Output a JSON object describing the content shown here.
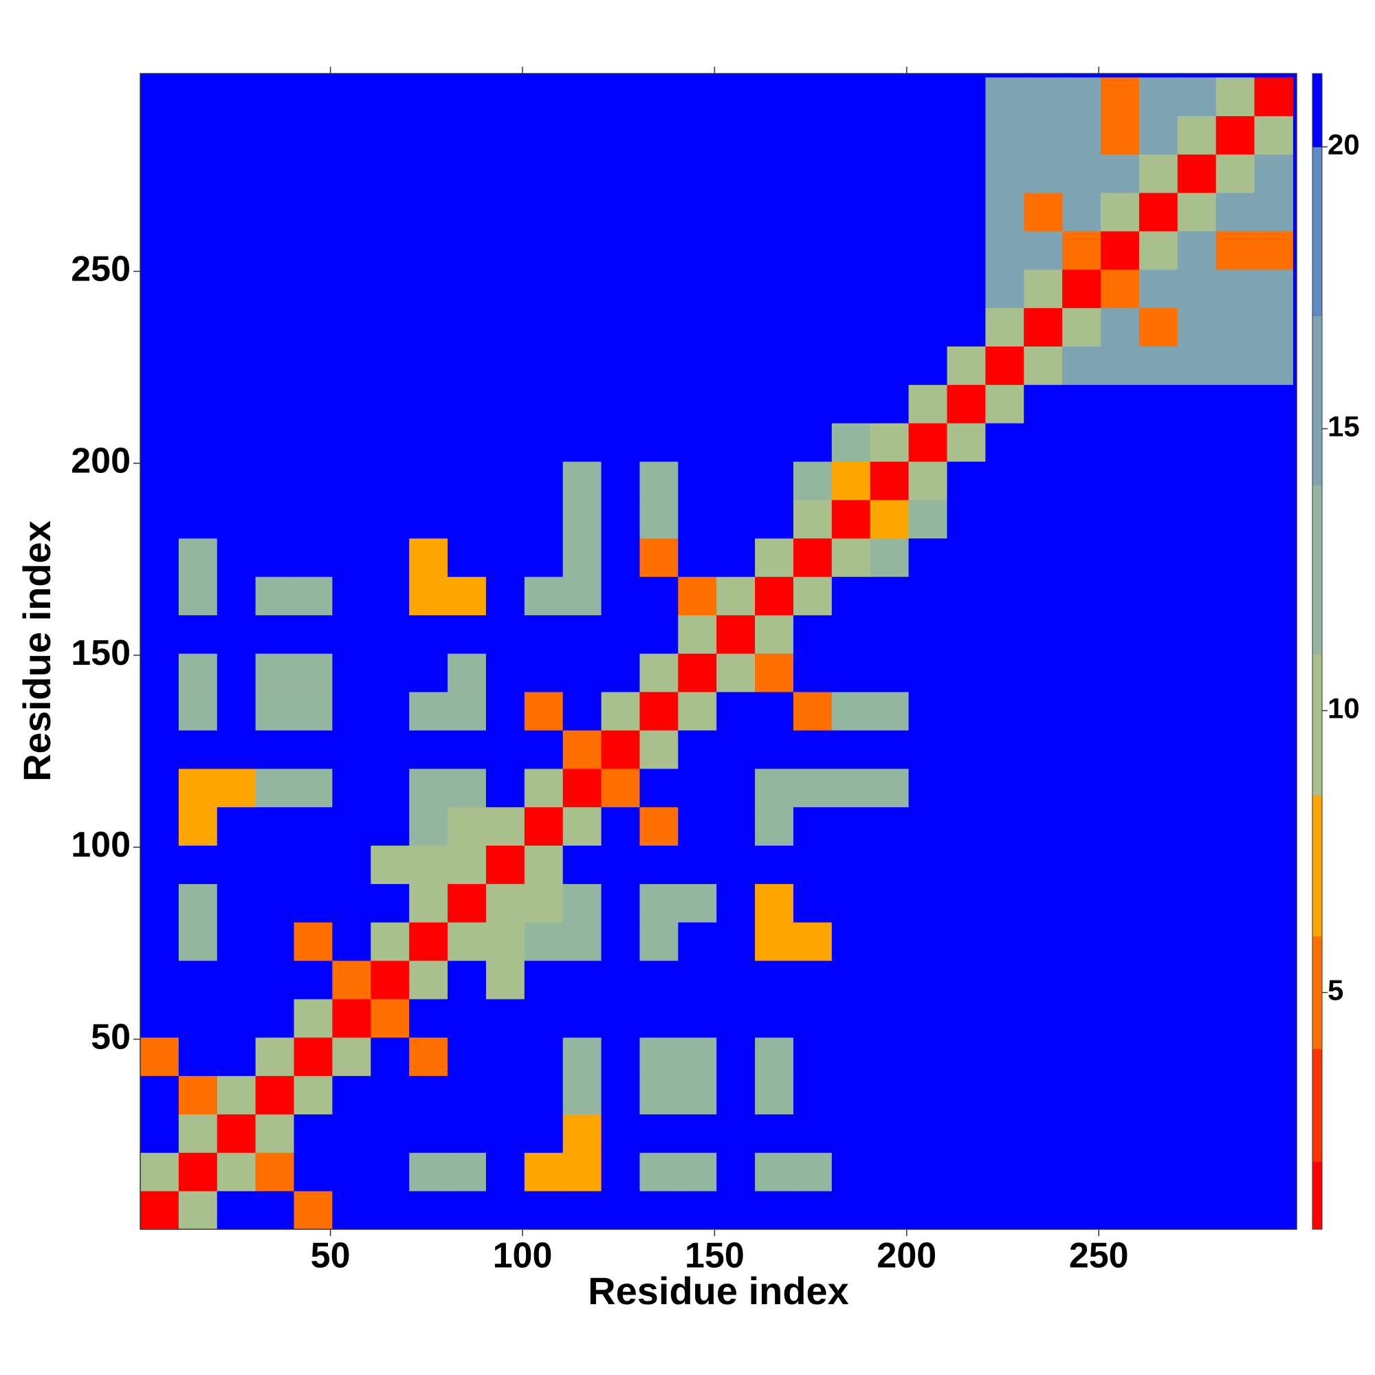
{
  "chart_data": {
    "type": "heatmap",
    "x_label": "Residue index",
    "y_label": "Residue index",
    "xlim": [
      0.5,
      301.5
    ],
    "ylim": [
      0.5,
      301.5
    ],
    "xticks": [
      50,
      100,
      150,
      200,
      250
    ],
    "yticks": [
      50,
      100,
      150,
      200,
      250
    ],
    "xbins": [
      0.5,
      10.5,
      20.5,
      30.5,
      40.5,
      50.5,
      60.5,
      70.5,
      80.5,
      90.5,
      100.5,
      110.5,
      120.5,
      130.5,
      140.5,
      150.5,
      160.5,
      170.5,
      180.5,
      190.5,
      200.5,
      210.5,
      220.5,
      230.5,
      240.5,
      250.5,
      260.5,
      270.5,
      280.5,
      290.5,
      300.5
    ],
    "ybins": [
      0.5,
      10.5,
      20.5,
      30.5,
      40.5,
      50.5,
      60.5,
      70.5,
      80.5,
      90.5,
      100.5,
      110.5,
      120.5,
      130.5,
      140.5,
      150.5,
      160.5,
      170.5,
      180.5,
      190.5,
      200.5,
      210.5,
      220.5,
      230.5,
      240.5,
      250.5,
      260.5,
      270.5,
      280.5,
      290.5,
      300.5
    ],
    "zlim": [
      0.8,
      21.3
    ],
    "zticks": [
      5,
      10,
      15,
      20
    ],
    "color_levels": [
      [
        2,
        "#ff0000"
      ],
      [
        4,
        "#ff3300"
      ],
      [
        6,
        "#ff7000"
      ],
      [
        8.5,
        "#ffa500"
      ],
      [
        11,
        "#a9c08e"
      ],
      [
        14,
        "#94b5a0"
      ],
      [
        17,
        "#7fa4b3"
      ],
      [
        20,
        "#5e8bc4"
      ],
      [
        21.3,
        "#0000ff"
      ]
    ],
    "z": [
      [
        2,
        9,
        22,
        22,
        6,
        22,
        22,
        22,
        22,
        22,
        22,
        22,
        22,
        22,
        22,
        22,
        22,
        22,
        22,
        22,
        22,
        22,
        22,
        22,
        22,
        22,
        22,
        22,
        22,
        22
      ],
      [
        9,
        2,
        9,
        6,
        22,
        22,
        22,
        12,
        12,
        22,
        8,
        8,
        22,
        13,
        12,
        22,
        13,
        13,
        22,
        22,
        22,
        22,
        22,
        22,
        22,
        22,
        22,
        22,
        22,
        22
      ],
      [
        22,
        9,
        2,
        9,
        22,
        22,
        22,
        22,
        22,
        22,
        22,
        8,
        22,
        22,
        22,
        22,
        22,
        22,
        22,
        22,
        22,
        22,
        22,
        22,
        22,
        22,
        22,
        22,
        22,
        22
      ],
      [
        22,
        6,
        9,
        2,
        9,
        22,
        22,
        22,
        22,
        22,
        22,
        12,
        22,
        14,
        14,
        22,
        13,
        22,
        22,
        22,
        22,
        22,
        22,
        22,
        22,
        22,
        22,
        22,
        22,
        22
      ],
      [
        6,
        22,
        22,
        9,
        2,
        9,
        22,
        6,
        22,
        22,
        22,
        12,
        22,
        14,
        14,
        22,
        13,
        22,
        22,
        22,
        22,
        22,
        22,
        22,
        22,
        22,
        22,
        22,
        22,
        22
      ],
      [
        22,
        22,
        22,
        22,
        9,
        2,
        6,
        22,
        22,
        22,
        22,
        22,
        22,
        22,
        22,
        22,
        22,
        22,
        22,
        22,
        22,
        22,
        22,
        22,
        22,
        22,
        22,
        22,
        22,
        22
      ],
      [
        22,
        22,
        22,
        22,
        22,
        6,
        2,
        9,
        22,
        11,
        22,
        22,
        22,
        22,
        22,
        22,
        22,
        22,
        22,
        22,
        22,
        22,
        22,
        22,
        22,
        22,
        22,
        22,
        22,
        22
      ],
      [
        22,
        12,
        22,
        22,
        6,
        22,
        9,
        2,
        9,
        10,
        12,
        13,
        22,
        14,
        22,
        22,
        8,
        8,
        22,
        22,
        22,
        22,
        22,
        22,
        22,
        22,
        22,
        22,
        22,
        22
      ],
      [
        22,
        12,
        22,
        22,
        22,
        22,
        22,
        9,
        2,
        9,
        10,
        12,
        22,
        14,
        14,
        22,
        8,
        22,
        22,
        22,
        22,
        22,
        22,
        22,
        22,
        22,
        22,
        22,
        22,
        22
      ],
      [
        22,
        22,
        22,
        22,
        22,
        22,
        11,
        10,
        9,
        2,
        9,
        22,
        22,
        22,
        22,
        22,
        22,
        22,
        22,
        22,
        22,
        22,
        22,
        22,
        22,
        22,
        22,
        22,
        22,
        22
      ],
      [
        22,
        8,
        22,
        22,
        22,
        22,
        22,
        12,
        10,
        9,
        2,
        9,
        22,
        6,
        22,
        22,
        14,
        22,
        22,
        22,
        22,
        22,
        22,
        22,
        22,
        22,
        22,
        22,
        22,
        22
      ],
      [
        22,
        8,
        8,
        12,
        12,
        22,
        22,
        13,
        12,
        22,
        9,
        2,
        6,
        22,
        22,
        22,
        13,
        13,
        13,
        13,
        22,
        22,
        22,
        22,
        22,
        22,
        22,
        22,
        22,
        22
      ],
      [
        22,
        22,
        22,
        22,
        22,
        22,
        22,
        22,
        22,
        22,
        22,
        6,
        2,
        9,
        22,
        22,
        22,
        22,
        22,
        22,
        22,
        22,
        22,
        22,
        22,
        22,
        22,
        22,
        22,
        22
      ],
      [
        22,
        13,
        22,
        14,
        14,
        22,
        22,
        14,
        14,
        22,
        6,
        22,
        9,
        2,
        9,
        22,
        22,
        6,
        14,
        14,
        22,
        22,
        22,
        22,
        22,
        22,
        22,
        22,
        22,
        22
      ],
      [
        22,
        12,
        22,
        14,
        14,
        22,
        22,
        22,
        14,
        22,
        22,
        22,
        22,
        9,
        2,
        9,
        6,
        22,
        22,
        22,
        22,
        22,
        22,
        22,
        22,
        22,
        22,
        22,
        22,
        22
      ],
      [
        22,
        22,
        22,
        22,
        22,
        22,
        22,
        22,
        22,
        22,
        22,
        22,
        22,
        22,
        9,
        2,
        9,
        22,
        22,
        22,
        22,
        22,
        22,
        22,
        22,
        22,
        22,
        22,
        22,
        22
      ],
      [
        22,
        13,
        22,
        13,
        13,
        22,
        22,
        8,
        8,
        22,
        14,
        13,
        22,
        22,
        6,
        9,
        2,
        9,
        22,
        22,
        22,
        22,
        22,
        22,
        22,
        22,
        22,
        22,
        22,
        22
      ],
      [
        22,
        13,
        22,
        22,
        22,
        22,
        22,
        8,
        22,
        22,
        22,
        13,
        22,
        6,
        22,
        22,
        9,
        2,
        9,
        13,
        22,
        22,
        22,
        22,
        22,
        22,
        22,
        22,
        22,
        22
      ],
      [
        22,
        22,
        22,
        22,
        22,
        22,
        22,
        22,
        22,
        22,
        22,
        13,
        22,
        14,
        22,
        22,
        22,
        9,
        2,
        7,
        13,
        22,
        22,
        22,
        22,
        22,
        22,
        22,
        22,
        22
      ],
      [
        22,
        22,
        22,
        22,
        22,
        22,
        22,
        22,
        22,
        22,
        22,
        13,
        22,
        14,
        22,
        22,
        22,
        13,
        7,
        2,
        9,
        22,
        22,
        22,
        22,
        22,
        22,
        22,
        22,
        22
      ],
      [
        22,
        22,
        22,
        22,
        22,
        22,
        22,
        22,
        22,
        22,
        22,
        22,
        22,
        22,
        22,
        22,
        22,
        22,
        13,
        9,
        2,
        9,
        22,
        22,
        22,
        22,
        22,
        22,
        22,
        22
      ],
      [
        22,
        22,
        22,
        22,
        22,
        22,
        22,
        22,
        22,
        22,
        22,
        22,
        22,
        22,
        22,
        22,
        22,
        22,
        22,
        22,
        9,
        2,
        9,
        22,
        22,
        22,
        22,
        22,
        22,
        22
      ],
      [
        22,
        22,
        22,
        22,
        22,
        22,
        22,
        22,
        22,
        22,
        22,
        22,
        22,
        22,
        22,
        22,
        22,
        22,
        22,
        22,
        22,
        9,
        2,
        9,
        15,
        15,
        15,
        15,
        15,
        15
      ],
      [
        22,
        22,
        22,
        22,
        22,
        22,
        22,
        22,
        22,
        22,
        22,
        22,
        22,
        22,
        22,
        22,
        22,
        22,
        22,
        22,
        22,
        22,
        9,
        2,
        9,
        15,
        6,
        15,
        15,
        15
      ],
      [
        22,
        22,
        22,
        22,
        22,
        22,
        22,
        22,
        22,
        22,
        22,
        22,
        22,
        22,
        22,
        22,
        22,
        22,
        22,
        22,
        22,
        22,
        15,
        9,
        2,
        6,
        15,
        15,
        15,
        15
      ],
      [
        22,
        22,
        22,
        22,
        22,
        22,
        22,
        22,
        22,
        22,
        22,
        22,
        22,
        22,
        22,
        22,
        22,
        22,
        22,
        22,
        22,
        22,
        15,
        15,
        6,
        2,
        9,
        15,
        6,
        6
      ],
      [
        22,
        22,
        22,
        22,
        22,
        22,
        22,
        22,
        22,
        22,
        22,
        22,
        22,
        22,
        22,
        22,
        22,
        22,
        22,
        22,
        22,
        22,
        15,
        6,
        15,
        9,
        2,
        9,
        15,
        15
      ],
      [
        22,
        22,
        22,
        22,
        22,
        22,
        22,
        22,
        22,
        22,
        22,
        22,
        22,
        22,
        22,
        22,
        22,
        22,
        22,
        22,
        22,
        22,
        15,
        15,
        15,
        15,
        9,
        2,
        9,
        15
      ],
      [
        22,
        22,
        22,
        22,
        22,
        22,
        22,
        22,
        22,
        22,
        22,
        22,
        22,
        22,
        22,
        22,
        22,
        22,
        22,
        22,
        22,
        22,
        15,
        15,
        15,
        6,
        15,
        9,
        2,
        9
      ],
      [
        22,
        22,
        22,
        22,
        22,
        22,
        22,
        22,
        22,
        22,
        22,
        22,
        22,
        22,
        22,
        22,
        22,
        22,
        22,
        22,
        22,
        22,
        15,
        15,
        15,
        6,
        15,
        15,
        9,
        2
      ]
    ]
  }
}
